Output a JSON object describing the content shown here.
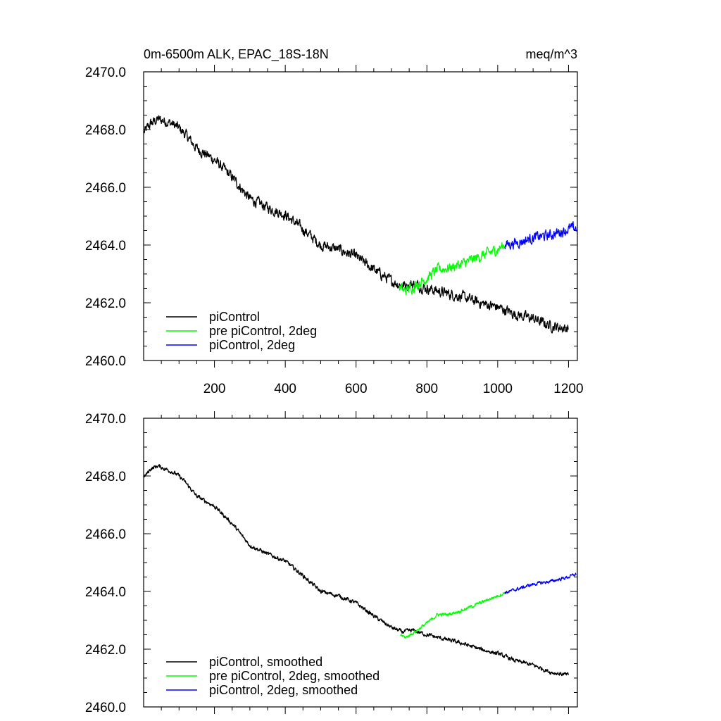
{
  "chart_data": [
    {
      "type": "line",
      "title_left": "0m-6500m ALK, EPAC_18S-18N",
      "title_right": "meq/m^3",
      "xlabel": "",
      "ylabel": "",
      "xlim": [
        0,
        1225
      ],
      "ylim": [
        2460.0,
        2470.0
      ],
      "xticks": [
        200,
        400,
        600,
        800,
        1000,
        1200
      ],
      "xtick_labels": [
        "200",
        "400",
        "600",
        "800",
        "1000",
        "1200"
      ],
      "yticks": [
        2460,
        2462,
        2464,
        2466,
        2468,
        2470
      ],
      "ytick_labels": [
        "2460.0",
        "2462.0",
        "2464.0",
        "2466.0",
        "2468.0",
        "2470.0"
      ],
      "legend_position": "bottom-left",
      "series": [
        {
          "name": "piControl",
          "color": "#000000",
          "noise": 0.13,
          "x": [
            1,
            20,
            40,
            60,
            80,
            100,
            120,
            150,
            200,
            250,
            300,
            350,
            400,
            450,
            500,
            550,
            600,
            650,
            700,
            730,
            760,
            800,
            850,
            900,
            950,
            1000,
            1050,
            1100,
            1150,
            1200
          ],
          "y": [
            2467.9,
            2468.2,
            2468.35,
            2468.3,
            2468.2,
            2468.05,
            2467.8,
            2467.35,
            2466.95,
            2466.35,
            2465.6,
            2465.3,
            2465.05,
            2464.55,
            2464.0,
            2463.85,
            2463.6,
            2463.15,
            2462.75,
            2462.6,
            2462.65,
            2462.5,
            2462.35,
            2462.2,
            2462.0,
            2461.85,
            2461.6,
            2461.45,
            2461.2,
            2461.1
          ]
        },
        {
          "name": "pre piControl, 2deg",
          "color": "#00ff00",
          "noise": 0.13,
          "x": [
            722,
            735,
            760,
            800,
            830,
            860,
            900,
            950,
            1000,
            1020
          ],
          "y": [
            2462.55,
            2462.4,
            2462.55,
            2462.85,
            2463.15,
            2463.2,
            2463.35,
            2463.6,
            2463.85,
            2464.0
          ]
        },
        {
          "name": "piControl, 2deg",
          "color": "#0000ff",
          "noise": 0.13,
          "x": [
            1020,
            1060,
            1100,
            1150,
            1200,
            1222
          ],
          "y": [
            2464.0,
            2464.1,
            2464.25,
            2464.35,
            2464.55,
            2464.6
          ]
        }
      ]
    },
    {
      "type": "line",
      "title_left": "",
      "title_right": "",
      "xlabel": "",
      "ylabel": "",
      "xlim": [
        0,
        1225
      ],
      "ylim": [
        2460.0,
        2470.0
      ],
      "xticks": [
        200,
        400,
        600,
        800,
        1000,
        1200
      ],
      "yticks": [
        2460,
        2462,
        2464,
        2466,
        2468,
        2470
      ],
      "ytick_labels": [
        "2460.0",
        "2462.0",
        "2464.0",
        "2466.0",
        "2468.0",
        "2470.0"
      ],
      "legend_position": "bottom-left",
      "series": [
        {
          "name": "piControl, smoothed",
          "color": "#000000",
          "noise": 0.05,
          "x": [
            1,
            20,
            40,
            60,
            80,
            100,
            120,
            150,
            200,
            250,
            300,
            350,
            400,
            450,
            500,
            550,
            600,
            650,
            700,
            730,
            760,
            800,
            850,
            900,
            950,
            1000,
            1050,
            1100,
            1150,
            1200
          ],
          "y": [
            2467.95,
            2468.25,
            2468.35,
            2468.25,
            2468.15,
            2468.0,
            2467.75,
            2467.3,
            2466.95,
            2466.35,
            2465.6,
            2465.3,
            2465.05,
            2464.55,
            2464.0,
            2463.85,
            2463.6,
            2463.15,
            2462.75,
            2462.6,
            2462.65,
            2462.5,
            2462.35,
            2462.2,
            2462.0,
            2461.85,
            2461.6,
            2461.45,
            2461.2,
            2461.1
          ]
        },
        {
          "name": "pre piControl, 2deg, smoothed",
          "color": "#00ff00",
          "noise": 0.04,
          "x": [
            725,
            740,
            760,
            800,
            830,
            860,
            900,
            950,
            1000,
            1020
          ],
          "y": [
            2462.5,
            2462.4,
            2462.55,
            2462.9,
            2463.2,
            2463.2,
            2463.35,
            2463.6,
            2463.85,
            2463.95
          ]
        },
        {
          "name": "piControl, 2deg, smoothed",
          "color": "#0000ff",
          "noise": 0.04,
          "x": [
            1020,
            1060,
            1100,
            1150,
            1200,
            1222
          ],
          "y": [
            2463.95,
            2464.1,
            2464.25,
            2464.35,
            2464.5,
            2464.6
          ]
        }
      ]
    }
  ]
}
